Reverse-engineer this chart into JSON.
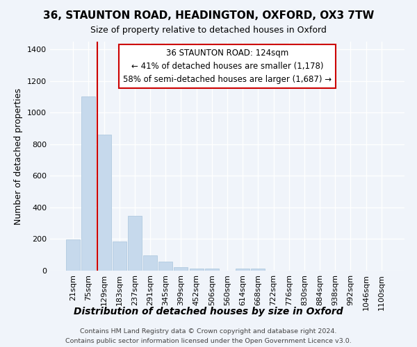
{
  "title": "36, STAUNTON ROAD, HEADINGTON, OXFORD, OX3 7TW",
  "subtitle": "Size of property relative to detached houses in Oxford",
  "xlabel": "Distribution of detached houses by size in Oxford",
  "ylabel": "Number of detached properties",
  "footnote1": "Contains HM Land Registry data © Crown copyright and database right 2024.",
  "footnote2": "Contains public sector information licensed under the Open Government Licence v3.0.",
  "categories": [
    "21sqm",
    "75sqm",
    "129sqm",
    "183sqm",
    "237sqm",
    "291sqm",
    "345sqm",
    "399sqm",
    "452sqm",
    "506sqm",
    "560sqm",
    "614sqm",
    "668sqm",
    "722sqm",
    "776sqm",
    "830sqm",
    "884sqm",
    "938sqm",
    "992sqm",
    "1046sqm",
    "1100sqm"
  ],
  "values": [
    197,
    1105,
    862,
    183,
    349,
    95,
    55,
    22,
    13,
    11,
    0,
    11,
    11,
    0,
    0,
    0,
    0,
    0,
    0,
    0,
    0
  ],
  "bar_color": "#c6d9ec",
  "bar_edge_color": "#a8c4dc",
  "redline_color": "#cc0000",
  "redline_bar_index": 2,
  "annotation_line1": "36 STAUNTON ROAD: 124sqm",
  "annotation_line2": "← 41% of detached houses are smaller (1,178)",
  "annotation_line3": "58% of semi-detached houses are larger (1,687) →",
  "ylim_max": 1450,
  "background_color": "#f0f4fa",
  "grid_color": "#ffffff",
  "title_fontsize": 11,
  "subtitle_fontsize": 9,
  "xlabel_fontsize": 10,
  "ylabel_fontsize": 9,
  "tick_fontsize": 8,
  "annotation_fontsize": 8.5,
  "footnote_fontsize": 6.8
}
